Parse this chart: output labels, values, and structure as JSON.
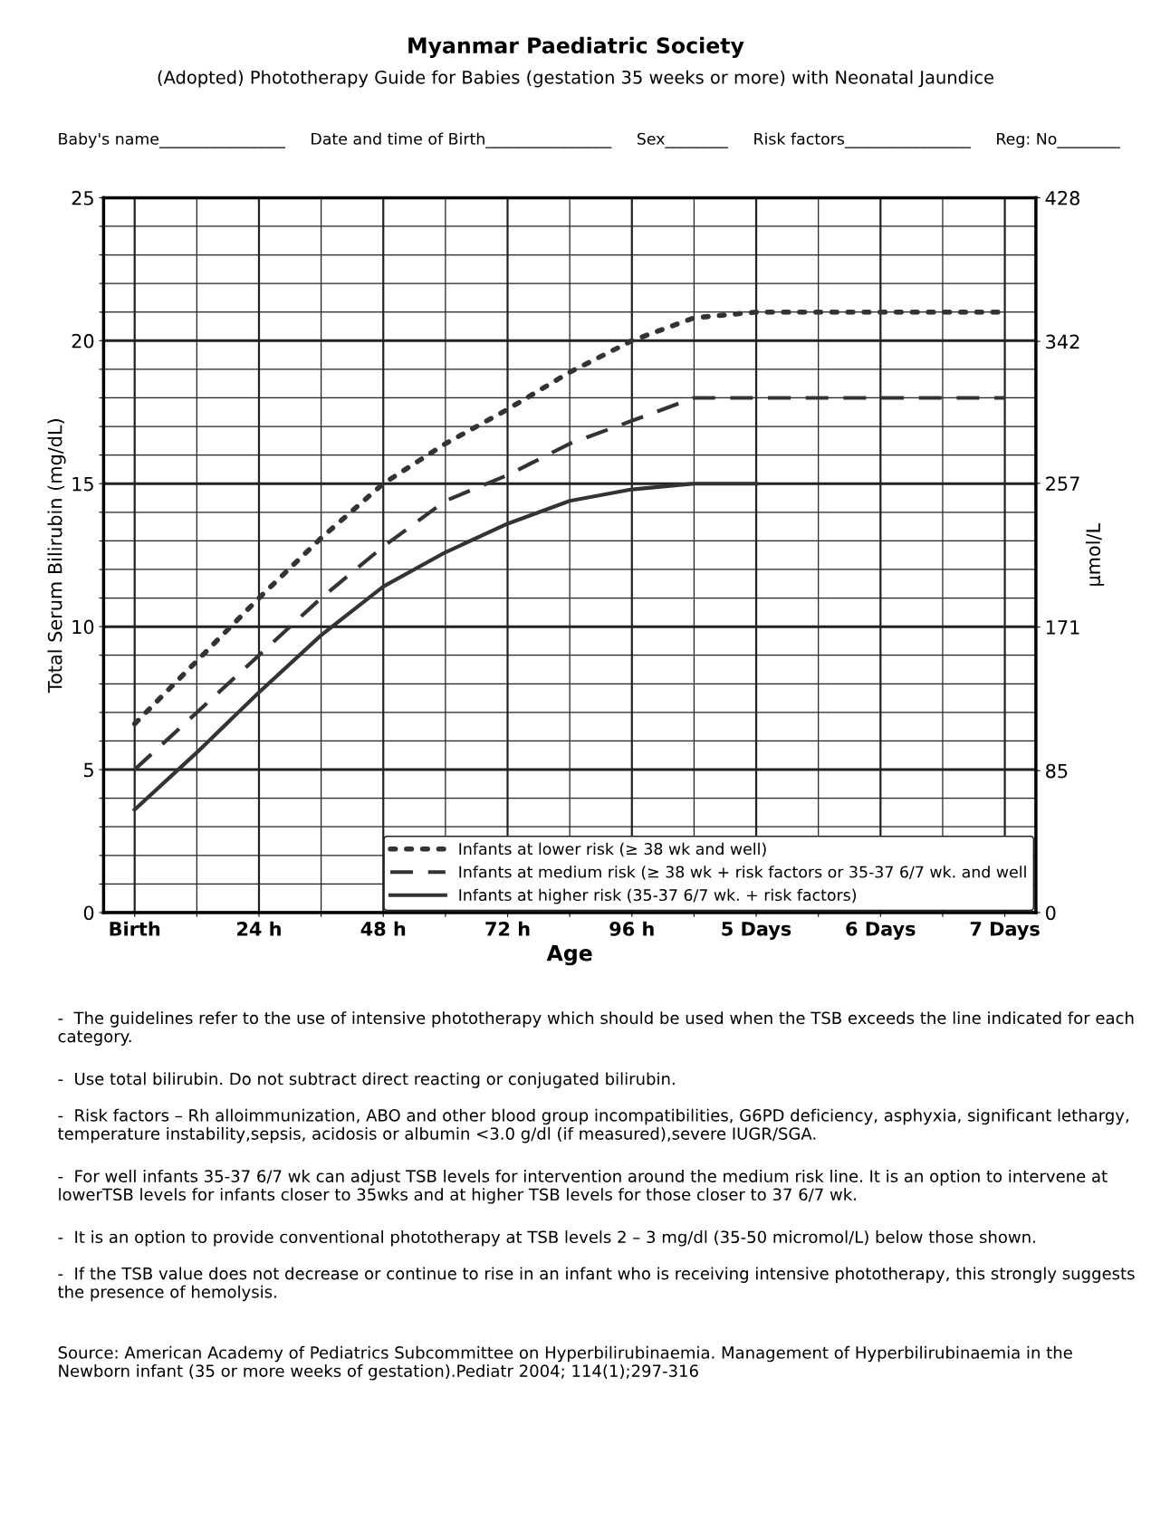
{
  "chart_data": {
    "type": "line",
    "title": "Myanmar Paediatric Society",
    "subtitle": "(Adopted) Phototherapy Guide for Babies (gestation 35 weeks or more) with Neonatal Jaundice",
    "xlabel": "Age",
    "ylabel": "Total Serum Bilirubin (mg/dL)",
    "y2label": "µmol/L",
    "categories": [
      "Birth",
      null,
      "24 h",
      null,
      "48 h",
      null,
      "72 h",
      null,
      "96 h",
      null,
      "5 Days",
      null,
      "6 Days",
      null,
      "7 Days"
    ],
    "series": [
      {
        "name": "Infants at lower risk (≥ 38 wk and well)",
        "color": "#333333",
        "line_style": "dotted",
        "values": [
          6.6,
          8.8,
          11.0,
          13.1,
          15.0,
          16.4,
          17.6,
          18.9,
          20.0,
          20.8,
          21.0,
          21.0,
          21.0,
          21.0,
          21.0
        ]
      },
      {
        "name": "Infants at medium risk (≥ 38 wk + risk factors or 35-37 6/7 wk. and well",
        "color": "#333333",
        "line_style": "dashed",
        "values": [
          5.0,
          7.0,
          9.0,
          11.0,
          12.8,
          14.4,
          15.3,
          16.4,
          17.2,
          18.0,
          18.0,
          18.0,
          18.0,
          18.0,
          18.0
        ]
      },
      {
        "name": "Infants at higher risk (35-37 6/7 wk. + risk factors)",
        "color": "#333333",
        "line_style": "solid",
        "values": [
          3.6,
          5.6,
          7.7,
          9.7,
          11.4,
          12.6,
          13.6,
          14.4,
          14.8,
          15.0,
          15.0,
          null,
          null,
          null,
          null
        ]
      }
    ],
    "ylim": [
      0,
      25
    ],
    "yticks": [
      0,
      {
        "value": 1,
        "label": null
      },
      {
        "value": 2,
        "label": null
      },
      {
        "value": 3,
        "label": null
      },
      {
        "value": 4,
        "label": null
      },
      5,
      {
        "value": 6,
        "label": null
      },
      {
        "value": 7,
        "label": null
      },
      {
        "value": 8,
        "label": null
      },
      {
        "value": 9,
        "label": null
      },
      10,
      {
        "value": 11,
        "label": null
      },
      {
        "value": 12,
        "label": null
      },
      {
        "value": 13,
        "label": null
      },
      {
        "value": 14,
        "label": null
      },
      15,
      {
        "value": 16,
        "label": null
      },
      {
        "value": 17,
        "label": null
      },
      {
        "value": 18,
        "label": null
      },
      {
        "value": 19,
        "label": null
      },
      20,
      {
        "value": 21,
        "label": null
      },
      {
        "value": 22,
        "label": null
      },
      {
        "value": 23,
        "label": null
      },
      {
        "value": 24,
        "label": null
      },
      25
    ],
    "y2lim": [
      0,
      428
    ],
    "y2ticks": [
      0,
      85,
      171,
      257,
      342,
      428
    ],
    "grid": true,
    "legend": "bottom right",
    "marker": "none",
    "annotations": [
      "Baby's name________________     Date and time of Birth________________     Sex________     Risk factors________________     Reg: No________",
      "-  The guidelines refer to the use of intensive phototherapy which should be used when the TSB exceeds the line indicated for each category.",
      "-  Use total bilirubin. Do not subtract direct reacting or conjugated bilirubin.",
      "-  Risk factors – Rh alloimmunization, ABO and other blood group incompatibilities, G6PD deficiency, asphyxia, significant lethargy, temperature instability,sepsis, acidosis or albumin <3.0 g/dl (if measured),severe IUGR/SGA.",
      "-  For well infants 35-37 6/7 wk can adjust TSB levels for intervention around the medium risk line. It is an option to intervene at lowerTSB levels for infants closer to 35wks and at higher TSB levels for those closer to 37 6/7 wk.",
      "-  It is an option to provide conventional phototherapy at TSB levels 2 – 3 mg/dl (35-50 micromol/L) below those shown.",
      "-  If the TSB value does not decrease or continue to rise in an infant who is receiving intensive phototherapy, this strongly suggests the presence of hemolysis.",
      "Source: American Academy of Pediatrics Subcommittee on Hyperbilirubinaemia. Management of Hyperbilirubinaemia in the Newborn infant (35 or more weeks of gestation).Pediatr 2004; 114(1);297-316"
    ]
  }
}
